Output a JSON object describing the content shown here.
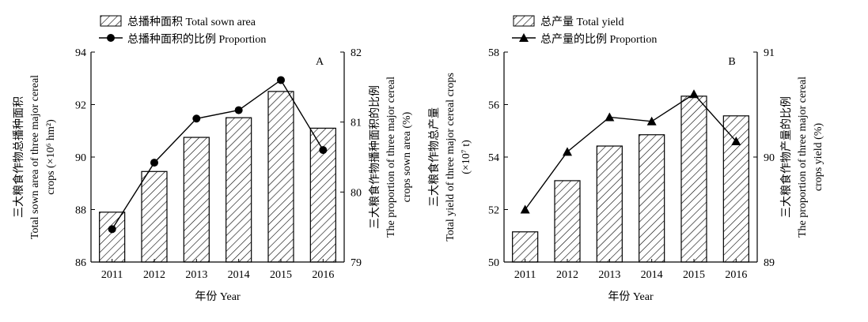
{
  "chart_data": [
    {
      "type": "bar",
      "panel_label": "A",
      "categories": [
        "2011",
        "2012",
        "2013",
        "2014",
        "2015",
        "2016"
      ],
      "series": [
        {
          "name": "总播种面积 Total sown area",
          "kind": "bar",
          "axis": "left",
          "values": [
            87.9,
            89.45,
            90.75,
            91.5,
            92.5,
            91.1
          ]
        },
        {
          "name": "总播种面积的比例 Proportion",
          "kind": "line",
          "marker": "circle",
          "axis": "right",
          "values": [
            79.47,
            80.42,
            81.05,
            81.17,
            81.6,
            80.6
          ]
        }
      ],
      "xlabel": "年份 Year",
      "ylabel_left": [
        "三大粮食作物总播种面积",
        "Total sown area of three major cereal",
        "crops (×10⁶ hm²)"
      ],
      "ylabel_right": [
        "三大粮食作物播种面积的比例",
        "The proportion of three major cereal",
        "crops sown area (%)"
      ],
      "ylim_left": [
        86,
        94
      ],
      "yticks_left": [
        "86",
        "88",
        "90",
        "92",
        "94"
      ],
      "ylim_right": [
        79,
        82
      ],
      "yticks_right": [
        "79",
        "80",
        "81",
        "82"
      ],
      "legend_position": "top-left",
      "bar_pattern": "diagonal-hatch"
    },
    {
      "type": "bar",
      "panel_label": "B",
      "categories": [
        "2011",
        "2012",
        "2013",
        "2014",
        "2015",
        "2016"
      ],
      "series": [
        {
          "name": "总产量 Total yield",
          "kind": "bar",
          "axis": "left",
          "values": [
            51.15,
            53.1,
            54.42,
            54.85,
            56.32,
            55.57
          ]
        },
        {
          "name": "总产量的比例 Proportion",
          "kind": "line",
          "marker": "triangle",
          "axis": "right",
          "values": [
            89.5,
            90.05,
            90.38,
            90.34,
            90.6,
            90.15
          ]
        }
      ],
      "xlabel": "年份 Year",
      "ylabel_left": [
        "三大粮食作物总产量",
        "Total yield of three major cereal crops",
        "(×10⁷ t)"
      ],
      "ylabel_right": [
        "三大粮食作物产量的比例",
        "The proportion of three major cereal",
        "crops yield (%)"
      ],
      "ylim_left": [
        50,
        58
      ],
      "yticks_left": [
        "50",
        "52",
        "54",
        "56",
        "58"
      ],
      "ylim_right": [
        89,
        91
      ],
      "yticks_right": [
        "89",
        "90",
        "91"
      ],
      "legend_position": "top-left",
      "bar_pattern": "diagonal-hatch"
    }
  ]
}
